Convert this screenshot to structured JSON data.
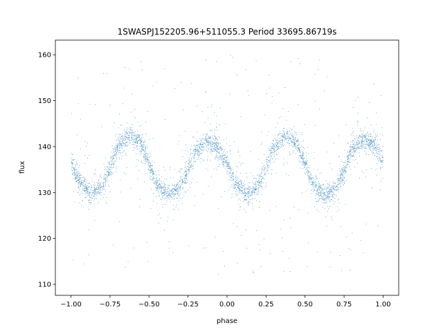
{
  "chart_data": {
    "type": "scatter",
    "title": "1SWASPJ152205.96+511055.3 Period 33695.86719s",
    "xlabel": "phase",
    "ylabel": "flux",
    "xlim": [
      -1.1,
      1.1
    ],
    "ylim": [
      107.6,
      163.2
    ],
    "xticks": [
      -1.0,
      -0.75,
      -0.5,
      -0.25,
      0.0,
      0.25,
      0.5,
      0.75,
      1.0
    ],
    "xtick_labels": [
      "−1.00",
      "−0.75",
      "−0.50",
      "−0.25",
      "0.00",
      "0.25",
      "0.50",
      "0.75",
      "1.00"
    ],
    "yticks": [
      110,
      120,
      130,
      140,
      150,
      160
    ],
    "ytick_labels": [
      "110",
      "120",
      "130",
      "140",
      "150",
      "160"
    ],
    "grid": false,
    "point_color": "#1f77b4",
    "series": [
      {
        "light_curve_profile": {
          "phase": [
            -1.0,
            -0.95,
            -0.875,
            -0.8,
            -0.75,
            -0.7,
            -0.625,
            -0.55,
            -0.5,
            -0.45,
            -0.375,
            -0.3,
            -0.25,
            -0.2,
            -0.125,
            -0.05,
            0.0,
            0.05,
            0.125,
            0.2,
            0.25,
            0.3,
            0.375,
            0.45,
            0.5,
            0.55,
            0.625,
            0.7,
            0.75,
            0.8,
            0.875,
            0.95,
            1.0
          ],
          "flux": [
            136.0,
            132.5,
            129.8,
            131.5,
            135.5,
            140.0,
            142.6,
            140.5,
            136.0,
            131.5,
            129.5,
            131.0,
            135.0,
            139.0,
            141.3,
            139.5,
            136.0,
            132.0,
            129.5,
            131.5,
            135.5,
            140.0,
            142.5,
            140.5,
            136.0,
            131.5,
            129.2,
            131.0,
            135.0,
            139.5,
            141.5,
            140.0,
            136.8
          ]
        },
        "scatter_sigma_core": 1.0,
        "outlier_range": [
          112,
          160
        ],
        "n_points": 9000
      }
    ]
  }
}
